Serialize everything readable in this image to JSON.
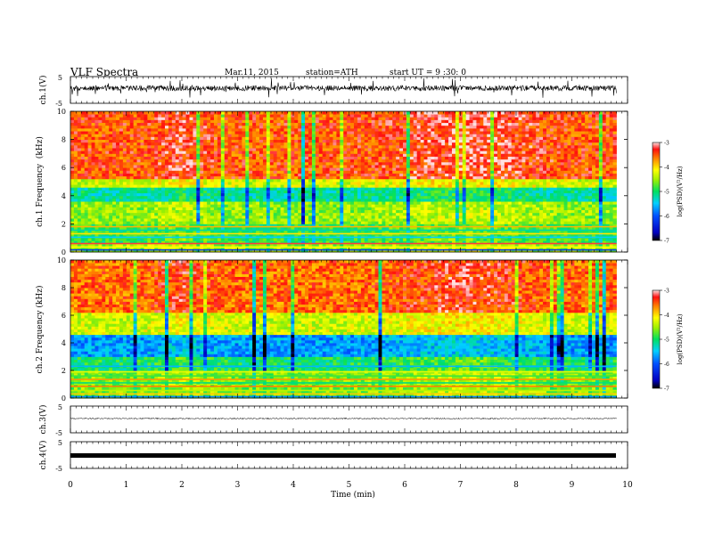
{
  "header": {
    "title": "VLF  Spectra",
    "date": "Mar.11, 2015",
    "station": "station=ATH",
    "start": "start  UT  =   9  :30: 0"
  },
  "chart_data": [
    {
      "type": "line",
      "ylabel": "ch.1(V)",
      "yticks": [
        "5",
        "-5"
      ],
      "ylim": [
        -5,
        5
      ],
      "trace": "dense noisy waveform, mean ~ +0.2 V, fluctuations to about -3..+3 V"
    },
    {
      "type": "heatmap",
      "ylabel": "ch.1\nFrequency  (kHz)",
      "ylim": [
        0,
        10
      ],
      "yticks": [
        "0",
        "2",
        "4",
        "6",
        "8",
        "10"
      ],
      "xlim": [
        0,
        10
      ],
      "colorbar": {
        "label": "log(PSD)(V²/Hz)",
        "range": [
          -7,
          -3
        ],
        "ticks": [
          "-3",
          "-4",
          "-5",
          "-6",
          "-7"
        ]
      },
      "description": "orange-red 5-10 kHz, green 2-5 kHz, cyan/blue band ~3.5-4.5 kHz, striped lines below 2 kHz, strong red line ~0.6 kHz"
    },
    {
      "type": "heatmap",
      "ylabel": "ch.2\nFrequency  (kHz)",
      "ylim": [
        0,
        10
      ],
      "yticks": [
        "0",
        "2",
        "4",
        "6",
        "8",
        "10"
      ],
      "xlim": [
        0,
        10
      ],
      "colorbar": {
        "label": "log(PSD)(V²/Hz)",
        "range": [
          -7,
          -3
        ],
        "ticks": [
          "-3",
          "-4",
          "-5",
          "-6",
          "-7"
        ]
      },
      "description": "orange-red 6-10 kHz, green 4-6 kHz, blue band ~3-4.5 kHz, cyan/orange lines below 2.5 kHz"
    },
    {
      "type": "line",
      "ylabel": "ch.3(V)",
      "yticks": [
        "5",
        "-5"
      ],
      "ylim": [
        -5,
        5
      ],
      "trace": "nearly flat near 0 V"
    },
    {
      "type": "line",
      "ylabel": "ch.4(V)",
      "yticks": [
        "5",
        "-5"
      ],
      "ylim": [
        -5,
        5
      ],
      "trace": "thick flat band near 0 V"
    }
  ],
  "xaxis": {
    "label": "Time  (min)",
    "ticks": [
      "0",
      "1",
      "2",
      "3",
      "4",
      "5",
      "6",
      "7",
      "8",
      "9",
      "10"
    ],
    "range": [
      0,
      10
    ]
  }
}
